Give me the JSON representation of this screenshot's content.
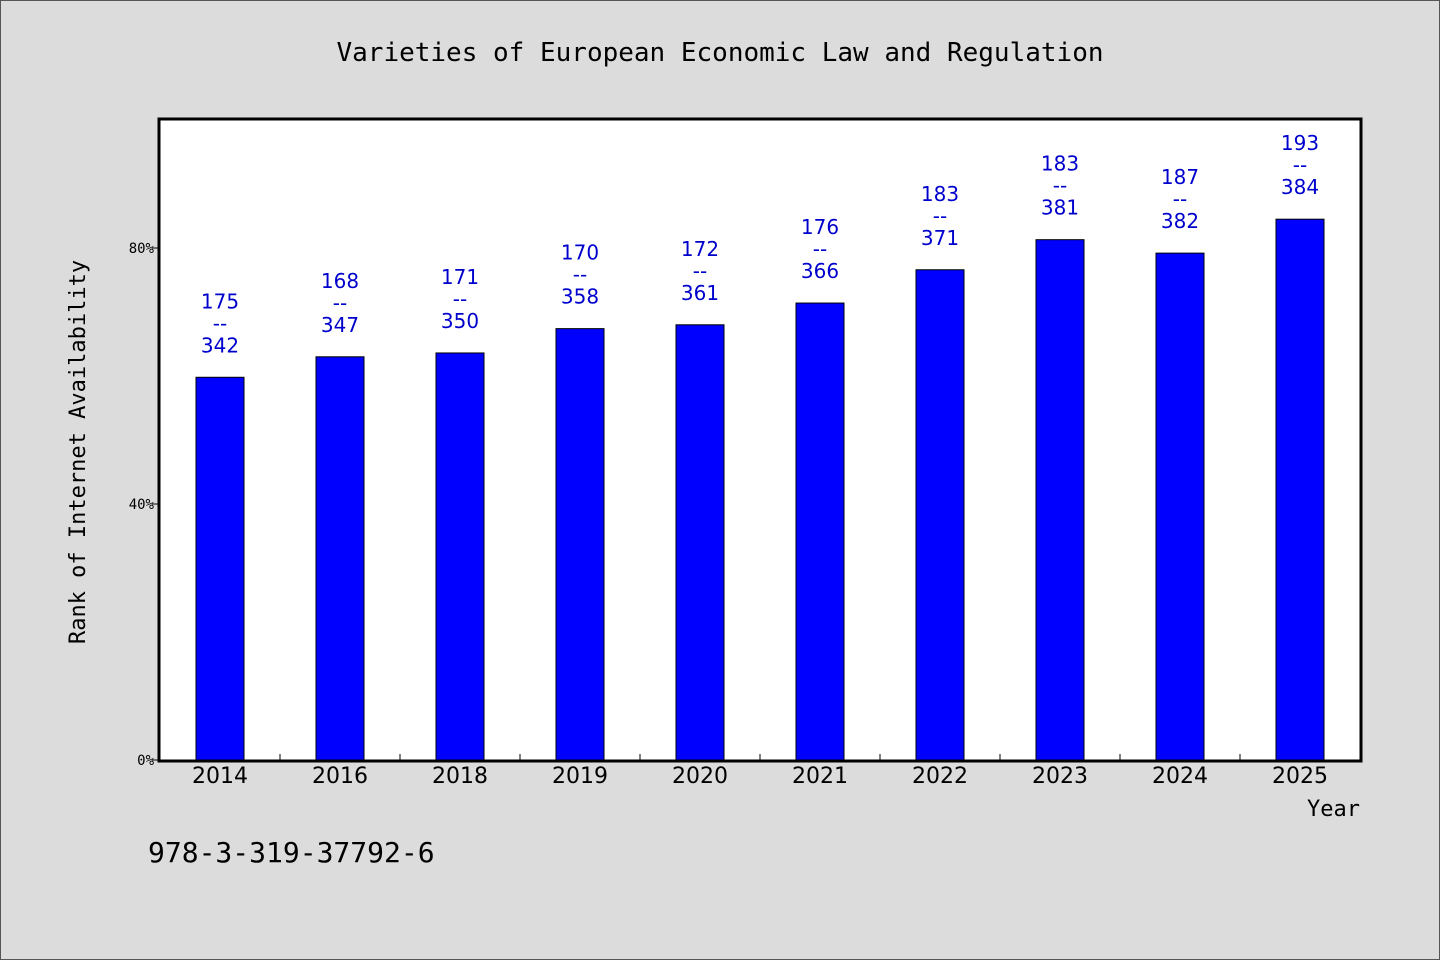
{
  "chart_data": {
    "type": "bar",
    "title": "Varieties of European Economic Law and Regulation",
    "xlabel": "Year",
    "ylabel": "Rank of Internet Availability",
    "categories": [
      "2014",
      "2016",
      "2018",
      "2019",
      "2020",
      "2021",
      "2022",
      "2023",
      "2024",
      "2025"
    ],
    "values": [
      59.8,
      63.0,
      63.6,
      67.4,
      68.0,
      71.4,
      76.6,
      81.3,
      79.2,
      84.5
    ],
    "value_labels": [
      [
        "175",
        "--",
        "342"
      ],
      [
        "168",
        "--",
        "347"
      ],
      [
        "171",
        "--",
        "350"
      ],
      [
        "170",
        "--",
        "358"
      ],
      [
        "172",
        "--",
        "361"
      ],
      [
        "176",
        "--",
        "366"
      ],
      [
        "183",
        "--",
        "371"
      ],
      [
        "183",
        "--",
        "381"
      ],
      [
        "187",
        "--",
        "382"
      ],
      [
        "193",
        "--",
        "384"
      ]
    ],
    "yticks": [
      "0%",
      "40%",
      "80%"
    ],
    "ytick_values": [
      0,
      40,
      80
    ],
    "ylim": [
      0,
      100
    ],
    "grid": false,
    "bar_color": "#0000ff",
    "label_color": "#0000cc",
    "plot_background": "#ffffff",
    "page_background": "#dcdcdc"
  },
  "footer": {
    "isbn": "978-3-319-37792-6"
  }
}
